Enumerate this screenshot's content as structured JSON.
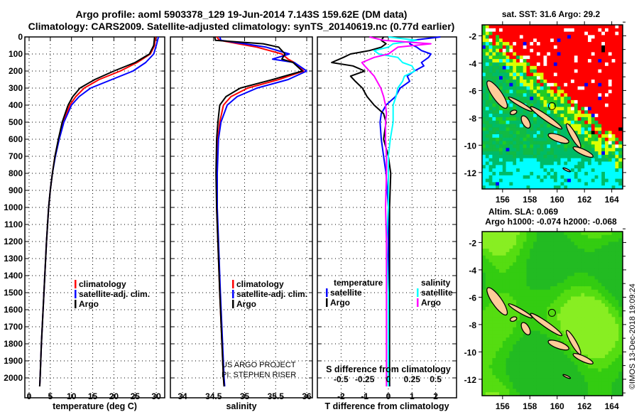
{
  "title_line1": "Argo profile: aoml 5903378_129 19-Jun-2014 7.143S 159.62E (DM data)",
  "title_line2": "Climatology: CARS2009. Satellite-adjusted climatology: synTS_20140619.nc (0.77d earlier)",
  "credit_project": "US ARGO PROJECT",
  "credit_pi": "PI: STEPHEN RISER",
  "timestamp": "©IMOS 13-Dec-2018 19:09:24",
  "colors": {
    "climatology": "#ff0000",
    "satellite": "#0000ff",
    "argo": "#000000",
    "s_satellite": "#00ffff",
    "s_argo": "#ff00ff"
  },
  "chart_data": [
    {
      "type": "line",
      "xlabel": "temperature (deg C)",
      "ylabel": "depth",
      "xlim": [
        -1,
        32
      ],
      "ylim": [
        2117,
        0
      ],
      "xticks": [
        "0",
        "5",
        "10",
        "15",
        "20",
        "25",
        "30"
      ],
      "yticks": [
        "0",
        "100",
        "200",
        "300",
        "400",
        "500",
        "600",
        "700",
        "800",
        "900",
        "1000",
        "1100",
        "1200",
        "1300",
        "1400",
        "1500",
        "1600",
        "1700",
        "1800",
        "1900",
        "2000"
      ],
      "legend": [
        "climatology",
        "satellite-adj. clim.",
        "Argo"
      ],
      "depth": [
        0,
        50,
        100,
        150,
        200,
        250,
        300,
        350,
        400,
        500,
        600,
        700,
        800,
        900,
        1000,
        1200,
        1400,
        1600,
        1800,
        2000,
        2050
      ],
      "series": [
        {
          "name": "climatology",
          "values": [
            29.8,
            29.6,
            28.6,
            25.5,
            21.5,
            16.5,
            13.0,
            11.0,
            9.6,
            8.0,
            7.0,
            6.1,
            5.5,
            5.0,
            4.6,
            4.1,
            3.7,
            3.3,
            2.9,
            2.6,
            2.5
          ]
        },
        {
          "name": "satellite-adj. clim.",
          "values": [
            30.5,
            30.0,
            29.4,
            27.5,
            24.5,
            19.5,
            14.5,
            11.8,
            10.0,
            8.2,
            7.1,
            6.2,
            5.5,
            5.0,
            4.6,
            4.1,
            3.7,
            3.3,
            2.9,
            2.6,
            2.5
          ]
        },
        {
          "name": "Argo",
          "values": [
            29.6,
            29.4,
            28.4,
            25.0,
            20.0,
            15.5,
            12.0,
            10.3,
            9.2,
            7.8,
            6.9,
            6.1,
            5.5,
            5.0,
            4.6,
            4.1,
            3.7,
            3.3,
            2.9,
            2.6,
            2.5
          ]
        }
      ]
    },
    {
      "type": "line",
      "xlabel": "salinity",
      "xlim": [
        33.8,
        36.1
      ],
      "ylim": [
        2117,
        0
      ],
      "xticks": [
        "34",
        "34.5",
        "35",
        "35.5",
        "36"
      ],
      "legend": [
        "climatology",
        "satellite-adj. clim.",
        "Argo"
      ],
      "depth": [
        0,
        20,
        40,
        60,
        100,
        130,
        150,
        200,
        250,
        300,
        350,
        400,
        500,
        600,
        800,
        1000,
        1500,
        2000,
        2050
      ],
      "series": [
        {
          "name": "climatology",
          "values": [
            34.55,
            34.6,
            34.9,
            35.2,
            35.6,
            35.7,
            35.8,
            35.95,
            35.55,
            35.05,
            34.78,
            34.66,
            34.6,
            34.57,
            34.55,
            34.55,
            34.6,
            34.66,
            34.67
          ]
        },
        {
          "name": "satellite-adj. clim.",
          "values": [
            34.6,
            34.62,
            35.0,
            35.35,
            35.72,
            35.45,
            35.8,
            36.0,
            35.7,
            35.2,
            34.88,
            34.72,
            34.62,
            34.58,
            34.56,
            34.56,
            34.61,
            34.67,
            34.68
          ]
        },
        {
          "name": "Argo",
          "values": [
            34.52,
            34.53,
            35.3,
            35.55,
            35.65,
            35.6,
            35.78,
            35.93,
            35.45,
            34.93,
            34.7,
            34.6,
            34.57,
            34.55,
            34.54,
            34.55,
            34.6,
            34.66,
            34.67
          ]
        }
      ]
    },
    {
      "type": "line",
      "xlabel": "T difference from climatology",
      "xlabel2": "S difference from climatology",
      "xlim": [
        -3,
        2.9
      ],
      "ylim": [
        2117,
        0
      ],
      "xticks": [
        "-2",
        "-1",
        "0",
        "1",
        "2"
      ],
      "xticks2": [
        "-0.5",
        "-0.25",
        "0",
        "0.25",
        "0.5"
      ],
      "legend_left_title": "temperature",
      "legend_right_title": "salinity",
      "legend_left": [
        "satellite",
        "Argo"
      ],
      "legend_right": [
        "satellite",
        "Argo"
      ],
      "depth": [
        0,
        20,
        40,
        60,
        80,
        100,
        120,
        150,
        170,
        200,
        230,
        260,
        300,
        350,
        400,
        450,
        500,
        600,
        700,
        800,
        1000,
        1200,
        1500,
        1800,
        2050
      ],
      "series": [
        {
          "name": "T satellite",
          "values": [
            2.2,
            1.0,
            0.9,
            1.2,
            1.4,
            1.8,
            1.7,
            1.4,
            1.5,
            1.1,
            0.8,
            0.9,
            0.5,
            0.3,
            -0.1,
            -0.3,
            -0.35,
            -0.3,
            -0.2,
            -0.1,
            0,
            0,
            0,
            0,
            0.05
          ]
        },
        {
          "name": "T Argo",
          "values": [
            -0.2,
            -0.3,
            -0.1,
            -0.3,
            -0.8,
            -1.6,
            -1.9,
            -2.4,
            -1.5,
            -1.0,
            -1.6,
            -1.4,
            -1.1,
            -0.9,
            -0.6,
            -0.2,
            -0.1,
            -0.2,
            0,
            0.1,
            0.05,
            0.05,
            0.05,
            0.05,
            0.05
          ]
        },
        {
          "name": "S satellite",
          "values": [
            0,
            0.3,
            0.05,
            0,
            -0.15,
            -0.1,
            0.1,
            0.15,
            0.25,
            0.28,
            0.17,
            0.15,
            0.1,
            0.08,
            0.05,
            0.05,
            0.05,
            0.02,
            0,
            0,
            0,
            -0.02,
            0,
            0,
            0
          ]
        },
        {
          "name": "S Argo",
          "values": [
            -0.2,
            -0.05,
            0.45,
            0.1,
            0.05,
            0,
            -0.15,
            -0.28,
            -0.25,
            -0.2,
            -0.15,
            -0.12,
            -0.08,
            -0.05,
            -0.03,
            -0.02,
            -0.03,
            -0.03,
            -0.02,
            -0.02,
            -0.03,
            -0.02,
            -0.02,
            -0.02,
            -0.02
          ]
        }
      ]
    },
    {
      "type": "heatmap",
      "title": "sat. SST: 31.6 Argo: 29.2",
      "xticks": [
        "156",
        "158",
        "160",
        "162",
        "164"
      ],
      "yticks": [
        "-2",
        "-4",
        "-6",
        "-8",
        "-10",
        "-12"
      ],
      "xlim": [
        154.5,
        164.8
      ],
      "ylim": [
        -13.2,
        -1.2
      ],
      "argo_position": [
        159.62,
        -7.143
      ]
    },
    {
      "type": "heatmap",
      "title": "Altim. SLA: 0.069",
      "subtitle": "Argo h1000: -0.074 h2000: -0.068",
      "xticks": [
        "156",
        "158",
        "160",
        "162",
        "164"
      ],
      "yticks": [
        "-2",
        "-4",
        "-6",
        "-8",
        "-10",
        "-12"
      ],
      "xlim": [
        154.5,
        164.8
      ],
      "ylim": [
        -13.2,
        -1.2
      ],
      "argo_position": [
        159.62,
        -7.143
      ]
    }
  ]
}
